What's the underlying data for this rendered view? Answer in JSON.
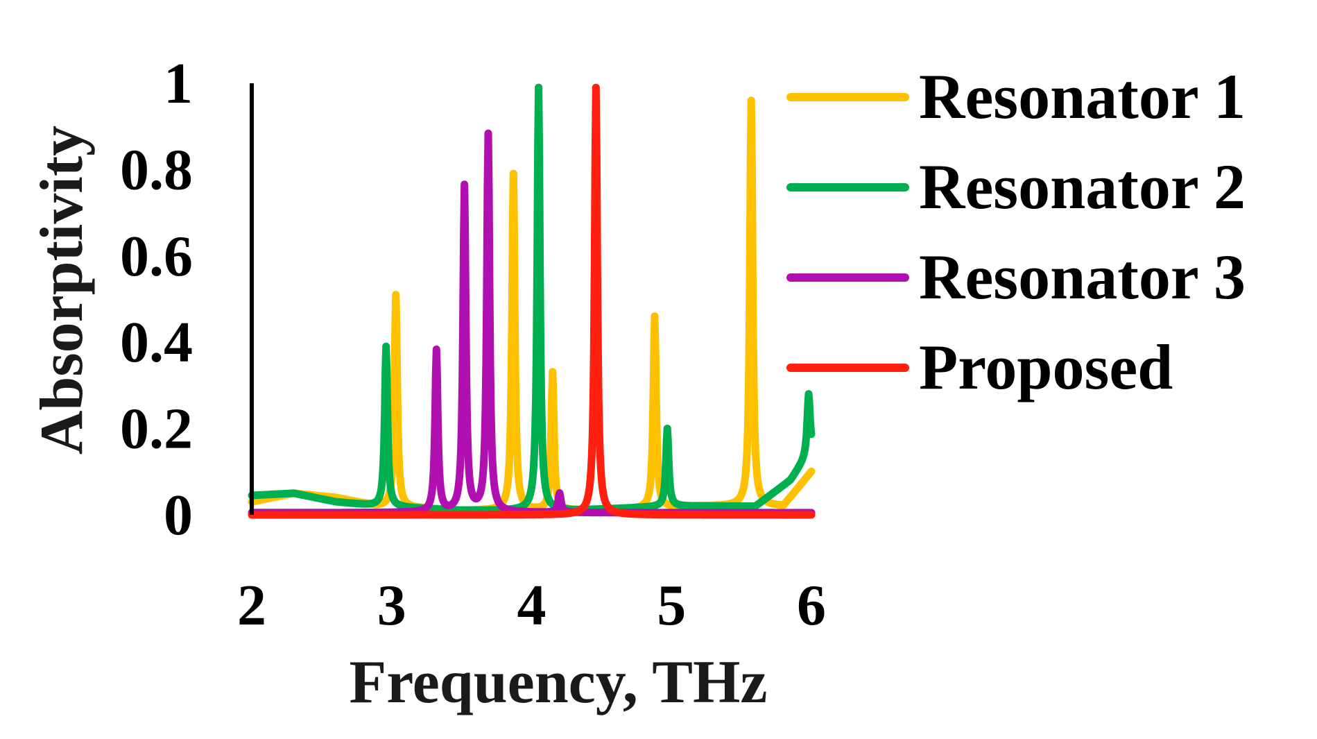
{
  "chart_data": {
    "type": "line",
    "title": "",
    "xlabel": "Frequency, THz",
    "ylabel": "Absorptivity",
    "xlim": [
      2,
      6
    ],
    "ylim": [
      0,
      1
    ],
    "x_ticks": [
      2,
      3,
      4,
      5,
      6
    ],
    "x_tick_labels": [
      "2",
      "3",
      "4",
      "5",
      "6"
    ],
    "y_ticks": [
      0,
      0.2,
      0.4,
      0.6,
      0.8,
      1
    ],
    "y_tick_labels": [
      "0",
      "0.2",
      "0.4",
      "0.6",
      "0.8",
      "1"
    ],
    "grid": false,
    "legend_position": "right",
    "series": [
      {
        "name": "Resonator 1",
        "color": "#FFC000",
        "baseline": [
          [
            2.0,
            0.03
          ],
          [
            2.3,
            0.05
          ],
          [
            2.6,
            0.04
          ],
          [
            2.9,
            0.02
          ],
          [
            3.5,
            0.01
          ],
          [
            4.5,
            0.01
          ],
          [
            5.2,
            0.02
          ],
          [
            5.8,
            0.02
          ],
          [
            6.0,
            0.1
          ]
        ],
        "peaks": [
          {
            "x": 3.03,
            "y": 0.51
          },
          {
            "x": 3.87,
            "y": 0.79
          },
          {
            "x": 4.15,
            "y": 0.33
          },
          {
            "x": 4.88,
            "y": 0.46
          },
          {
            "x": 5.57,
            "y": 0.96
          }
        ]
      },
      {
        "name": "Resonator 2",
        "color": "#00B050",
        "baseline": [
          [
            2.0,
            0.045
          ],
          [
            2.3,
            0.05
          ],
          [
            2.6,
            0.03
          ],
          [
            2.9,
            0.02
          ],
          [
            3.5,
            0.01
          ],
          [
            4.3,
            0.01
          ],
          [
            5.0,
            0.02
          ],
          [
            5.6,
            0.02
          ],
          [
            5.85,
            0.08
          ],
          [
            6.0,
            0.15
          ]
        ],
        "peaks": [
          {
            "x": 2.96,
            "y": 0.39
          },
          {
            "x": 4.05,
            "y": 0.99
          },
          {
            "x": 4.97,
            "y": 0.2
          },
          {
            "x": 5.98,
            "y": 0.28
          }
        ]
      },
      {
        "name": "Resonator 3",
        "color": "#B010B0",
        "baseline": [
          [
            2.0,
            0.005
          ],
          [
            6.0,
            0.005
          ]
        ],
        "peaks": [
          {
            "x": 3.32,
            "y": 0.38
          },
          {
            "x": 3.52,
            "y": 0.76
          },
          {
            "x": 3.69,
            "y": 0.88
          },
          {
            "x": 4.2,
            "y": 0.05
          }
        ]
      },
      {
        "name": "Proposed",
        "color": "#FF2010",
        "baseline": [
          [
            2.0,
            0.0
          ],
          [
            6.0,
            0.0
          ]
        ],
        "peaks": [
          {
            "x": 4.46,
            "y": 0.99
          }
        ]
      }
    ]
  }
}
